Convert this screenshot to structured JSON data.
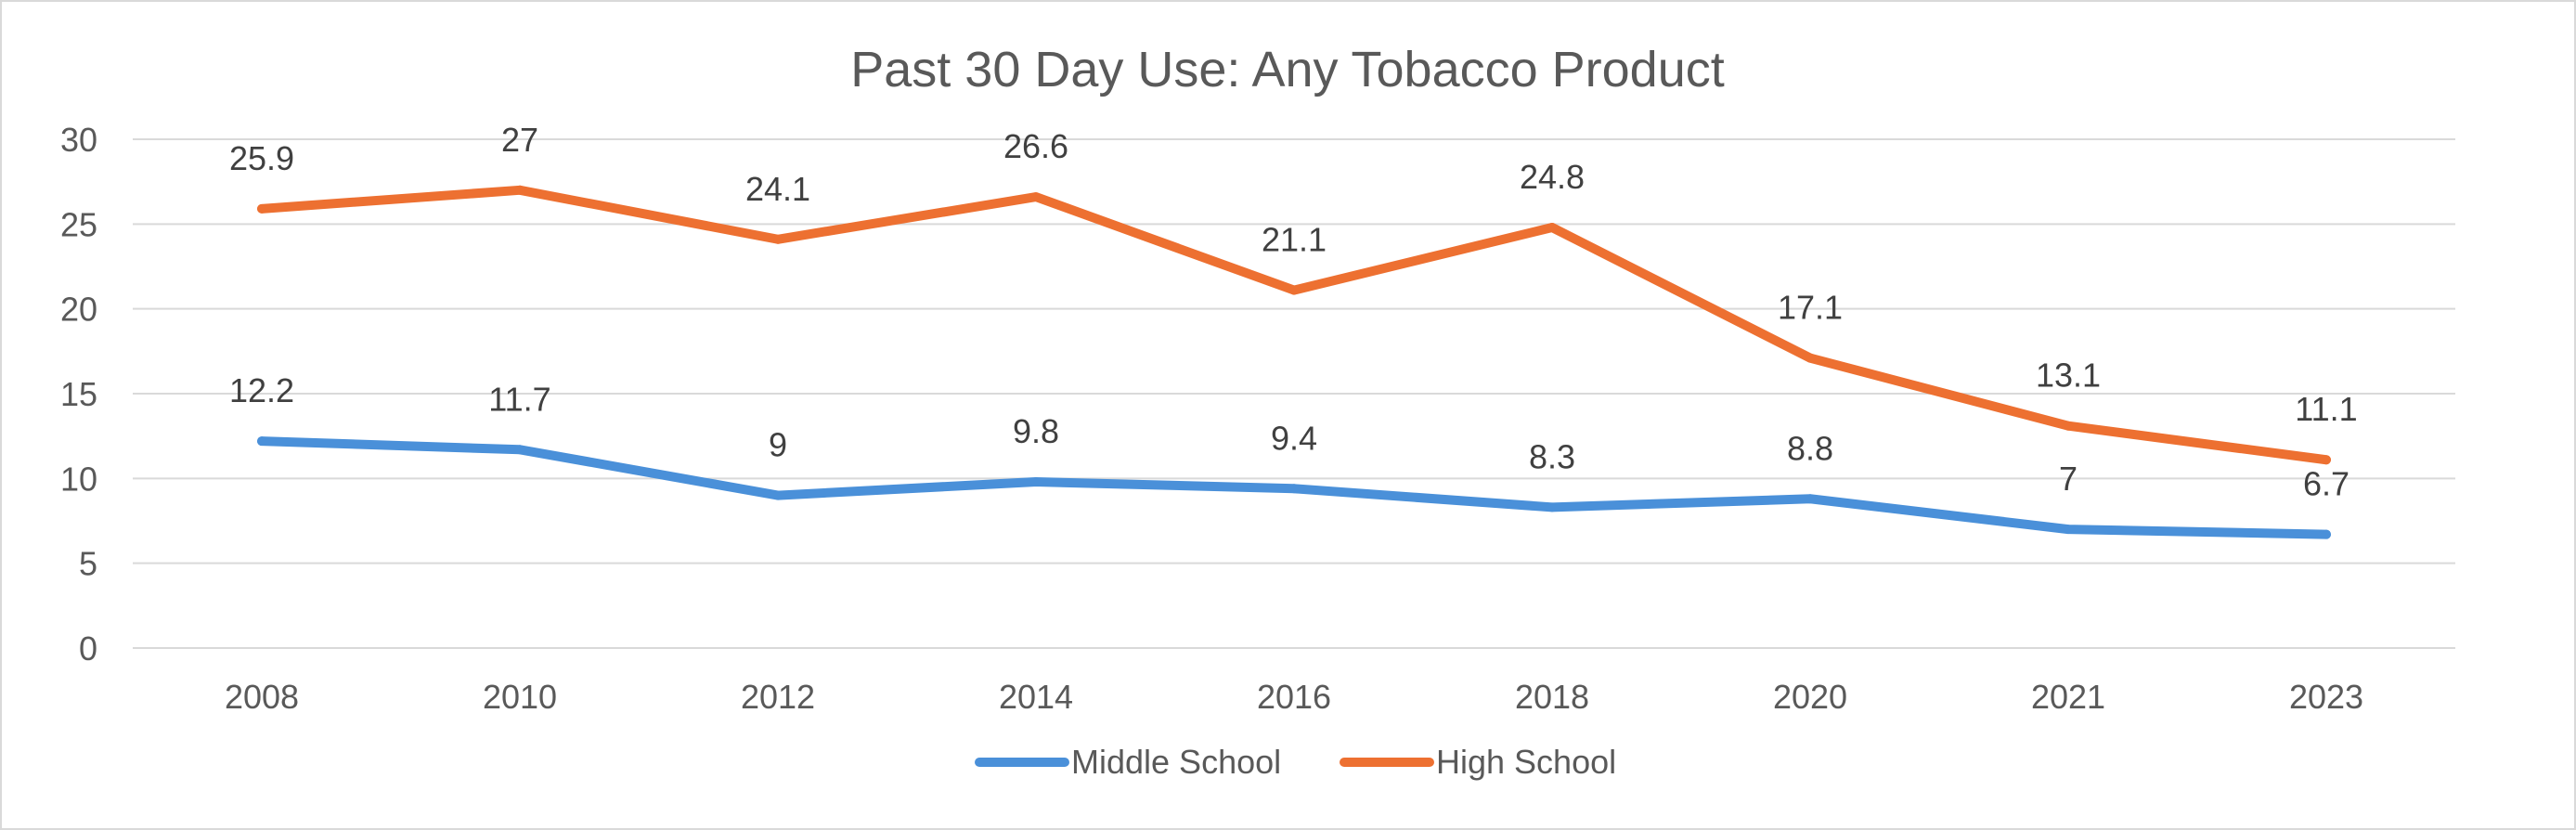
{
  "chart_data": {
    "type": "line",
    "title": "Past 30 Day Use: Any Tobacco Product",
    "xlabel": "",
    "ylabel": "",
    "categories": [
      "2008",
      "2010",
      "2012",
      "2014",
      "2016",
      "2018",
      "2020",
      "2021",
      "2023"
    ],
    "ylim": [
      0,
      30
    ],
    "yticks": [
      0,
      5,
      10,
      15,
      20,
      25,
      30
    ],
    "grid": true,
    "legend_position": "bottom",
    "series": [
      {
        "name": "Middle School",
        "color": "#4a90d9",
        "values": [
          12.2,
          11.7,
          9,
          9.8,
          9.4,
          8.3,
          8.8,
          7,
          6.7
        ],
        "labels": [
          "12.2",
          "11.7",
          "9",
          "9.8",
          "9.4",
          "8.3",
          "8.8",
          "7",
          "6.7"
        ]
      },
      {
        "name": "High School",
        "color": "#ed7031",
        "values": [
          25.9,
          27,
          24.1,
          26.6,
          21.1,
          24.8,
          17.1,
          13.1,
          11.1
        ],
        "labels": [
          "25.9",
          "27",
          "24.1",
          "26.6",
          "21.1",
          "24.8",
          "17.1",
          "13.1",
          "11.1"
        ]
      }
    ]
  }
}
